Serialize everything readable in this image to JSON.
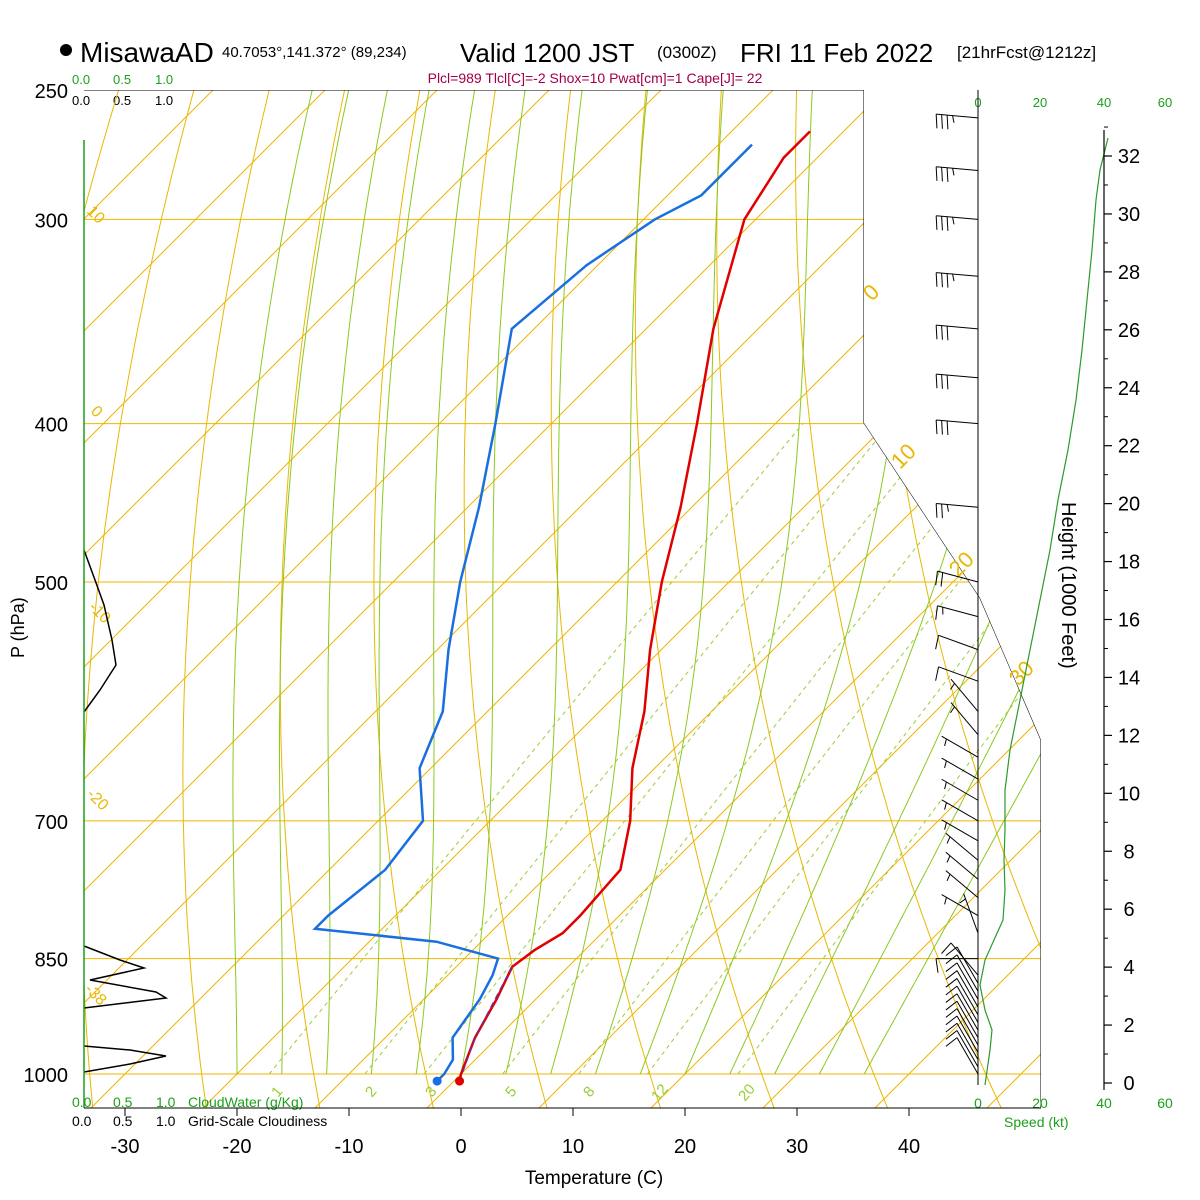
{
  "header": {
    "station": "MisawaAD",
    "coords": "40.7053°,141.372° (89,234)",
    "valid_main": "Valid 1200 JST",
    "valid_z": "(0300Z)",
    "date": "FRI 11 Feb 2022",
    "fcst": "[21hrFcst@1212z]",
    "indices": "Plcl=989 Tlcl[C]=-2 Shox=10 Pwat[cm]=1 Cape[J]= 22"
  },
  "colors": {
    "temp": "#e00000",
    "dew": "#1a6fe0",
    "isotherm": "#f0b400",
    "dry_adiabat": "#e8b800",
    "moist_adiabat": "#8cc820",
    "mixing": "#9acd32",
    "height": "#2a9a2a",
    "green_text": "#1aa01a",
    "indices": "#a0004a"
  },
  "chart_data": {
    "type": "skew-t",
    "xlabel": "Temperature (C)",
    "ylabel": "P (hPa)",
    "y2label": "Height (1000 Feet)",
    "temperature_ticks": [
      -30,
      -20,
      -10,
      0,
      10,
      20,
      30,
      40
    ],
    "pressure_ticks": [
      250,
      300,
      400,
      500,
      700,
      850,
      1000
    ],
    "height_ticks": [
      0,
      2,
      4,
      6,
      8,
      10,
      12,
      14,
      16,
      18,
      20,
      22,
      24,
      26,
      28,
      30,
      32
    ],
    "speed_ticks": [
      "0",
      "20",
      "40",
      "60"
    ],
    "speed_label": "Speed (kt)",
    "cloud_ticks": [
      "0.0",
      "0.5",
      "1.0"
    ],
    "cloudwater_label": "CloudWater (g/Kg)",
    "cloudiness_label": "Grid-Scale Cloudiness",
    "isotherm_labels": [
      "10",
      "0",
      "-10",
      "-20",
      "-38",
      "0",
      "10",
      "20",
      "30"
    ],
    "mixing_ratio_labels": [
      "1",
      "2",
      "3",
      "5",
      "8",
      "12",
      "20"
    ],
    "temperature_profile": [
      {
        "p": 1010,
        "t": 0.5
      },
      {
        "p": 1000,
        "t": 0
      },
      {
        "p": 950,
        "t": -2
      },
      {
        "p": 900,
        "t": -3.5
      },
      {
        "p": 860,
        "t": -5
      },
      {
        "p": 840,
        "t": -4.5
      },
      {
        "p": 820,
        "t": -3.5
      },
      {
        "p": 800,
        "t": -3.5
      },
      {
        "p": 750,
        "t": -4
      },
      {
        "p": 700,
        "t": -7.5
      },
      {
        "p": 650,
        "t": -12
      },
      {
        "p": 600,
        "t": -16
      },
      {
        "p": 550,
        "t": -21
      },
      {
        "p": 500,
        "t": -26
      },
      {
        "p": 450,
        "t": -31
      },
      {
        "p": 400,
        "t": -37
      },
      {
        "p": 350,
        "t": -44
      },
      {
        "p": 300,
        "t": -51
      },
      {
        "p": 275,
        "t": -53
      },
      {
        "p": 265,
        "t": -53
      }
    ],
    "dewpoint_profile": [
      {
        "p": 1010,
        "t": -1.5
      },
      {
        "p": 1000,
        "t": -1.5
      },
      {
        "p": 980,
        "t": -2
      },
      {
        "p": 950,
        "t": -4
      },
      {
        "p": 900,
        "t": -5
      },
      {
        "p": 870,
        "t": -6
      },
      {
        "p": 850,
        "t": -7
      },
      {
        "p": 830,
        "t": -14
      },
      {
        "p": 815,
        "t": -26
      },
      {
        "p": 800,
        "t": -26
      },
      {
        "p": 750,
        "t": -25
      },
      {
        "p": 700,
        "t": -26
      },
      {
        "p": 650,
        "t": -31
      },
      {
        "p": 600,
        "t": -34
      },
      {
        "p": 550,
        "t": -39
      },
      {
        "p": 500,
        "t": -44
      },
      {
        "p": 450,
        "t": -49
      },
      {
        "p": 400,
        "t": -55
      },
      {
        "p": 350,
        "t": -62
      },
      {
        "p": 320,
        "t": -61
      },
      {
        "p": 300,
        "t": -59
      },
      {
        "p": 290,
        "t": -57
      },
      {
        "p": 270,
        "t": -57
      }
    ],
    "wind_barbs": [
      {
        "p": 1000,
        "dir": 330,
        "spd": 10
      },
      {
        "p": 990,
        "dir": 330,
        "spd": 10
      },
      {
        "p": 980,
        "dir": 330,
        "spd": 10
      },
      {
        "p": 970,
        "dir": 330,
        "spd": 10
      },
      {
        "p": 960,
        "dir": 330,
        "spd": 10
      },
      {
        "p": 950,
        "dir": 330,
        "spd": 10
      },
      {
        "p": 940,
        "dir": 330,
        "spd": 10
      },
      {
        "p": 930,
        "dir": 330,
        "spd": 10
      },
      {
        "p": 920,
        "dir": 330,
        "spd": 10
      },
      {
        "p": 910,
        "dir": 330,
        "spd": 10
      },
      {
        "p": 900,
        "dir": 330,
        "spd": 10
      },
      {
        "p": 890,
        "dir": 330,
        "spd": 10
      },
      {
        "p": 880,
        "dir": 330,
        "spd": 10
      },
      {
        "p": 870,
        "dir": 320,
        "spd": 10
      },
      {
        "p": 850,
        "dir": 270,
        "spd": 10
      },
      {
        "p": 820,
        "dir": 340,
        "spd": 5
      },
      {
        "p": 800,
        "dir": 300,
        "spd": 5
      },
      {
        "p": 780,
        "dir": 310,
        "spd": 5
      },
      {
        "p": 760,
        "dir": 310,
        "spd": 5
      },
      {
        "p": 740,
        "dir": 310,
        "spd": 5
      },
      {
        "p": 720,
        "dir": 300,
        "spd": 5
      },
      {
        "p": 700,
        "dir": 300,
        "spd": 5
      },
      {
        "p": 680,
        "dir": 300,
        "spd": 5
      },
      {
        "p": 660,
        "dir": 300,
        "spd": 5
      },
      {
        "p": 640,
        "dir": 300,
        "spd": 5
      },
      {
        "p": 620,
        "dir": 320,
        "spd": 5
      },
      {
        "p": 600,
        "dir": 320,
        "spd": 5
      },
      {
        "p": 575,
        "dir": 290,
        "spd": 10
      },
      {
        "p": 550,
        "dir": 290,
        "spd": 10
      },
      {
        "p": 525,
        "dir": 285,
        "spd": 15
      },
      {
        "p": 500,
        "dir": 285,
        "spd": 20
      },
      {
        "p": 450,
        "dir": 275,
        "spd": 25
      },
      {
        "p": 400,
        "dir": 275,
        "spd": 30
      },
      {
        "p": 375,
        "dir": 275,
        "spd": 30
      },
      {
        "p": 350,
        "dir": 275,
        "spd": 30
      },
      {
        "p": 325,
        "dir": 275,
        "spd": 35
      },
      {
        "p": 300,
        "dir": 275,
        "spd": 35
      },
      {
        "p": 280,
        "dir": 275,
        "spd": 35
      },
      {
        "p": 260,
        "dir": 275,
        "spd": 35
      }
    ]
  }
}
